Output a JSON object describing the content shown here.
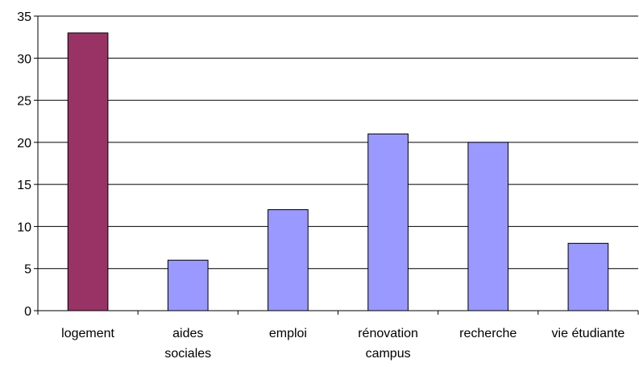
{
  "chart_data": {
    "type": "bar",
    "categories": [
      [
        "logement"
      ],
      [
        "aides",
        "sociales"
      ],
      [
        "emploi"
      ],
      [
        "rénovation",
        "campus"
      ],
      [
        "recherche"
      ],
      [
        "vie étudiante"
      ]
    ],
    "values": [
      33,
      6,
      12,
      21,
      20,
      8
    ],
    "bar_colors": [
      "#993366",
      "#9999ff",
      "#9999ff",
      "#9999ff",
      "#9999ff",
      "#9999ff"
    ],
    "bar_stroke": "#000000",
    "gridline_color": "#000000",
    "ylim": [
      0,
      35
    ],
    "yticks": [
      0,
      5,
      10,
      15,
      20,
      25,
      30,
      35
    ],
    "grid": true,
    "title": "",
    "xlabel": "",
    "ylabel": ""
  }
}
